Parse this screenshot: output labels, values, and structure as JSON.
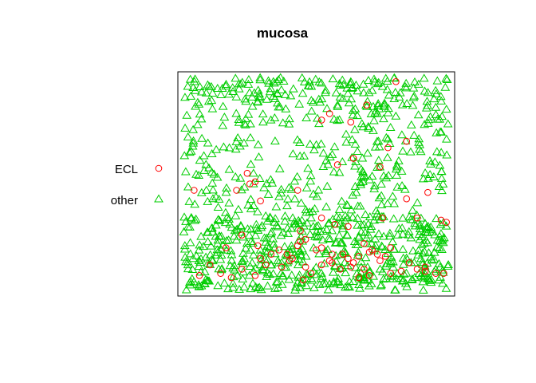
{
  "chart_data": {
    "type": "scatter",
    "title": "mucosa",
    "xlabel": "",
    "ylabel": "",
    "axes_shown": false,
    "grid": false,
    "legend_placement": "left",
    "xlim": [
      0,
      1
    ],
    "ylim": [
      0,
      1
    ],
    "legend": [
      {
        "label": "ECL",
        "marker": "circle",
        "color": "#ff0000"
      },
      {
        "label": "other",
        "marker": "triangle",
        "color": "#00cd00"
      }
    ],
    "series": [
      {
        "name": "ECL",
        "marker": "circle",
        "color": "#ff0000",
        "x": [
          0.8,
          0.69,
          0.55,
          0.52,
          0.63,
          0.84,
          0.77,
          0.74,
          0.24,
          0.27,
          0.2,
          0.29,
          0.25,
          0.43,
          0.64,
          0.58,
          0.84,
          0.92,
          0.88,
          0.62,
          0.57,
          0.44,
          0.22,
          0.46,
          0.43,
          0.75,
          0.52,
          0.68,
          0.71,
          0.73,
          0.76,
          0.99,
          0.97,
          0.04,
          0.16,
          0.28,
          0.36,
          0.39,
          0.41,
          0.44,
          0.46,
          0.52,
          0.55,
          0.56,
          0.6,
          0.62,
          0.64,
          0.66,
          0.68,
          0.7,
          0.74,
          0.78,
          0.82,
          0.88,
          0.91,
          0.95,
          0.06,
          0.1,
          0.14,
          0.18,
          0.22,
          0.27,
          0.29,
          0.31,
          0.33,
          0.37,
          0.4,
          0.45,
          0.48,
          0.5,
          0.52,
          0.56,
          0.59,
          0.63,
          0.66,
          0.7,
          0.78,
          0.85,
          0.91,
          0.98
        ],
        "y": [
          0.98,
          0.87,
          0.83,
          0.8,
          0.79,
          0.7,
          0.67,
          0.58,
          0.55,
          0.51,
          0.47,
          0.42,
          0.5,
          0.47,
          0.62,
          0.59,
          0.43,
          0.46,
          0.34,
          0.3,
          0.31,
          0.28,
          0.26,
          0.24,
          0.21,
          0.34,
          0.34,
          0.22,
          0.19,
          0.17,
          0.16,
          0.32,
          0.33,
          0.47,
          0.2,
          0.21,
          0.19,
          0.17,
          0.15,
          0.23,
          0.11,
          0.12,
          0.14,
          0.13,
          0.17,
          0.15,
          0.13,
          0.16,
          0.1,
          0.07,
          0.14,
          0.08,
          0.09,
          0.1,
          0.09,
          0.08,
          0.07,
          0.12,
          0.08,
          0.06,
          0.1,
          0.07,
          0.15,
          0.12,
          0.17,
          0.11,
          0.14,
          0.05,
          0.08,
          0.19,
          0.2,
          0.17,
          0.1,
          0.11,
          0.06,
          0.18,
          0.2,
          0.13,
          0.11,
          0.08
        ]
      },
      {
        "name": "other",
        "marker": "triangle",
        "color": "#00cd00",
        "count": 980,
        "x_range": [
          0,
          1
        ],
        "y_range": [
          0,
          1
        ],
        "distribution": "dense throughout, denser toward the bottom and top edges"
      }
    ]
  }
}
